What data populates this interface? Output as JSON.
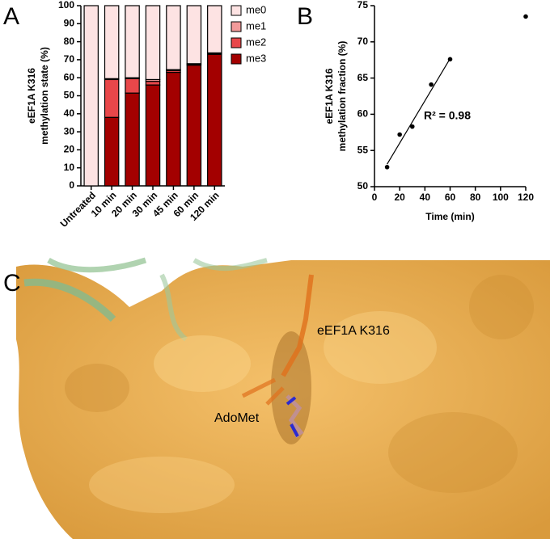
{
  "panels": [
    "A",
    "B",
    "C"
  ],
  "chart_data": [
    {
      "type": "bar",
      "stacked": true,
      "ylabel": [
        "eEF1A K316",
        "methylation state (%)"
      ],
      "categories": [
        "Untreated",
        "10 min",
        "20 min",
        "30 min",
        "45 min",
        "60 min",
        "120 min"
      ],
      "series": [
        {
          "name": "me0",
          "color": "#fde3e3",
          "values": [
            100,
            40.5,
            40,
            41,
            35.5,
            32.2,
            26.2
          ]
        },
        {
          "name": "me1",
          "color": "#f29a9a",
          "values": [
            0,
            0.5,
            0.5,
            1,
            0.5,
            0.3,
            0.3
          ]
        },
        {
          "name": "me2",
          "color": "#e8474a",
          "values": [
            0,
            21,
            8,
            2,
            1,
            0.5,
            0.5
          ]
        },
        {
          "name": "me3",
          "color": "#a30000",
          "values": [
            0,
            38,
            51.5,
            56,
            63,
            67,
            73
          ]
        }
      ],
      "ylim": [
        0,
        100
      ],
      "yticks": [
        0,
        10,
        20,
        30,
        40,
        50,
        60,
        70,
        80,
        90,
        100
      ],
      "legend": "right"
    },
    {
      "type": "scatter",
      "xlabel": "Time (min)",
      "ylabel": [
        "eEF1A K316",
        "methylation fraction (%)"
      ],
      "x": [
        10,
        20,
        30,
        45,
        60,
        120
      ],
      "values": [
        52.7,
        57.2,
        58.3,
        64.1,
        67.6,
        73.5
      ],
      "color": "#000000",
      "fit": {
        "x": [
          10,
          60
        ],
        "values": [
          53.1,
          67.7
        ]
      },
      "annotation": "R² = 0.98",
      "xlim": [
        0,
        120
      ],
      "xticks": [
        0,
        20,
        40,
        60,
        80,
        100,
        120
      ],
      "ylim": [
        50,
        75
      ],
      "yticks": [
        50,
        55,
        60,
        65,
        70,
        75
      ]
    }
  ],
  "image_labels": [
    "eEF1A K316",
    "AdoMet"
  ]
}
